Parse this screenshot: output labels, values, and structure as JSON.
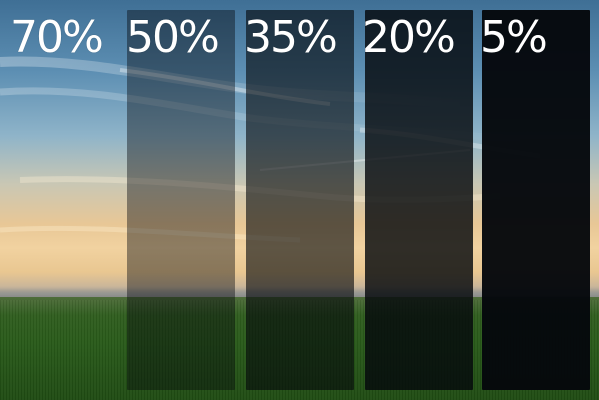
{
  "tint_levels": [
    {
      "label": "70%",
      "darkness": 0.0
    },
    {
      "label": "50%",
      "darkness": 0.42
    },
    {
      "label": "35%",
      "darkness": 0.62
    },
    {
      "label": "20%",
      "darkness": 0.82
    },
    {
      "label": "5%",
      "darkness": 0.97
    }
  ],
  "colors": {
    "sky_top": "#3f6f95",
    "sunset_glow": "#f1d2a0",
    "grass": "#285a19",
    "label_text": "#ffffff"
  }
}
